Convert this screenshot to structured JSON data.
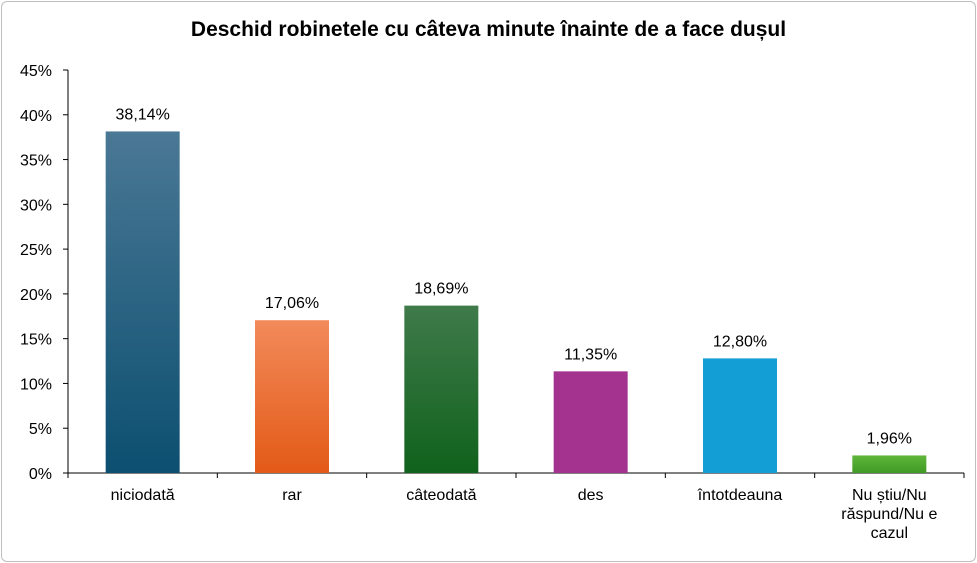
{
  "chart_data": {
    "type": "bar",
    "title": "Deschid robinetele cu câteva minute înainte de  a face dușul",
    "categories": [
      "niciodată",
      "rar",
      "câteodată",
      "des",
      "întotdeauna",
      "Nu știu/Nu răspund/Nu e cazul"
    ],
    "values": [
      38.14,
      17.06,
      18.69,
      11.35,
      12.8,
      1.96
    ],
    "data_labels": [
      "38,14%",
      "17,06%",
      "18,69%",
      "11,35%",
      "12,80%",
      "1,96%"
    ],
    "ylim": [
      0,
      45
    ],
    "yticks": [
      "0%",
      "5%",
      "10%",
      "15%",
      "20%",
      "25%",
      "30%",
      "35%",
      "40%",
      "45%"
    ],
    "xlabel": "",
    "ylabel": "",
    "grid": false,
    "legend": "none",
    "colors": [
      [
        "#4a7895",
        "#0c4f70"
      ],
      [
        "#f28a5a",
        "#e35a17"
      ],
      [
        "#3f7a4b",
        "#10621c"
      ],
      [
        "#a4328f",
        "#a4328f"
      ],
      [
        "#139ed6",
        "#139ed6"
      ],
      [
        "#5fb63a",
        "#3f9a25"
      ]
    ]
  }
}
